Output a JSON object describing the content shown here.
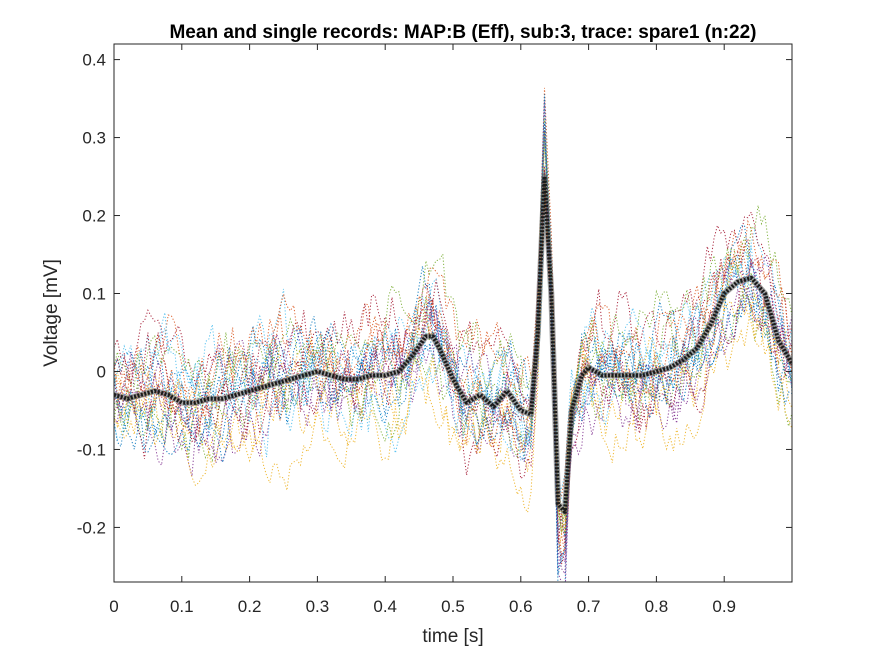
{
  "chart_data": {
    "type": "line",
    "title": "Mean and single records: MAP:B (Eff), sub:3, trace: spare1 (n:22)",
    "xlabel": "time [s]",
    "ylabel": "Voltage [mV]",
    "xlim": [
      0,
      1
    ],
    "ylim": [
      -0.27,
      0.42
    ],
    "xticks": [
      0,
      0.1,
      0.2,
      0.3,
      0.4,
      0.5,
      0.6,
      0.7,
      0.8,
      0.9
    ],
    "yticks": [
      -0.2,
      -0.1,
      0,
      0.1,
      0.2,
      0.3,
      0.4
    ],
    "xtick_labels": [
      "0",
      "0.1",
      "0.2",
      "0.3",
      "0.4",
      "0.5",
      "0.6",
      "0.7",
      "0.8",
      "0.9"
    ],
    "ytick_labels": [
      "-0.2",
      "-0.1",
      "0",
      "0.1",
      "0.2",
      "0.3",
      "0.4"
    ],
    "grid": false,
    "box": true,
    "single_records": {
      "count": 22,
      "line_style": "dotted",
      "colors": [
        "#0072BD",
        "#D95319",
        "#EDB120",
        "#7E2F8E",
        "#77AC30",
        "#4DBEEE",
        "#A2142F"
      ],
      "noise_amplitude_mv": 0.06
    },
    "series": [
      {
        "role": "mean",
        "color": "#1a1a1a",
        "x": [
          0.0,
          0.02,
          0.04,
          0.06,
          0.08,
          0.1,
          0.12,
          0.14,
          0.16,
          0.18,
          0.2,
          0.22,
          0.24,
          0.26,
          0.28,
          0.3,
          0.32,
          0.34,
          0.36,
          0.38,
          0.4,
          0.42,
          0.44,
          0.46,
          0.47,
          0.48,
          0.5,
          0.52,
          0.54,
          0.56,
          0.58,
          0.6,
          0.615,
          0.625,
          0.635,
          0.645,
          0.655,
          0.665,
          0.675,
          0.69,
          0.7,
          0.72,
          0.74,
          0.76,
          0.78,
          0.8,
          0.82,
          0.84,
          0.86,
          0.88,
          0.9,
          0.92,
          0.94,
          0.96,
          0.98,
          1.0
        ],
        "y": [
          -0.03,
          -0.035,
          -0.03,
          -0.025,
          -0.03,
          -0.04,
          -0.04,
          -0.035,
          -0.035,
          -0.03,
          -0.025,
          -0.02,
          -0.015,
          -0.01,
          -0.005,
          0.0,
          -0.005,
          -0.01,
          -0.01,
          -0.005,
          -0.005,
          0.0,
          0.02,
          0.045,
          0.045,
          0.03,
          -0.01,
          -0.04,
          -0.03,
          -0.045,
          -0.025,
          -0.05,
          -0.055,
          0.05,
          0.25,
          0.1,
          -0.17,
          -0.18,
          -0.05,
          -0.005,
          0.005,
          -0.005,
          -0.005,
          -0.005,
          -0.005,
          0.0,
          0.005,
          0.015,
          0.03,
          0.06,
          0.1,
          0.115,
          0.12,
          0.1,
          0.04,
          0.01
        ]
      }
    ]
  }
}
